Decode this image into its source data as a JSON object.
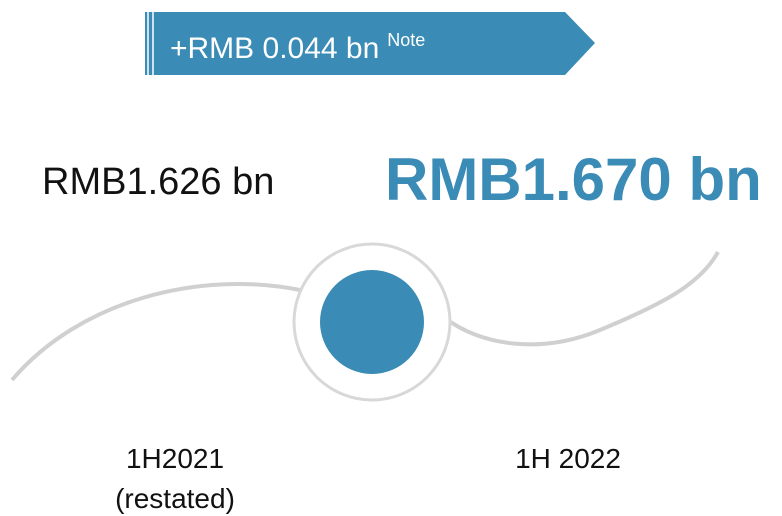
{
  "banner": {
    "text": "+RMB 0.044 bn",
    "superscript": "Note"
  },
  "previous": {
    "value": "RMB1.626 bn",
    "period": "1H2021",
    "period_note": "(restated)"
  },
  "current": {
    "value": "RMB1.670 bn",
    "period": "1H 2022"
  }
}
